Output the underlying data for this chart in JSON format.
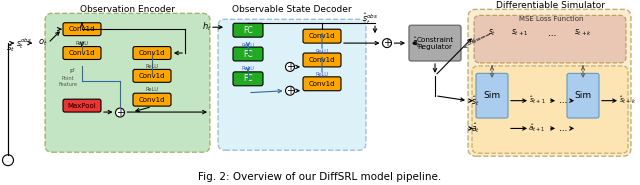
{
  "title": "Fig. 2: Overview of our DiffSRL model pipeline.",
  "obs_encoder_label": "Observation Encoder",
  "obs_state_decoder_label": "Observable State Decoder",
  "diff_sim_label": "Differentiable Simulator",
  "constraint_label": "Constraint\nRegulator",
  "mse_label": "MSE Loss Function",
  "conv1d_color": "#FFA500",
  "maxpool_color": "#EE3333",
  "fc_color": "#22AA22",
  "sim_color": "#AACCEE",
  "green_bg": "#88CC88",
  "blue_bg": "#AADDEE",
  "orange_bg": "#F5DEB3",
  "mse_bg": "#DDAA99",
  "sim_inner_bg": "#FFE090",
  "gray_bg": "#AAAAAA",
  "enc_edge": "#777700",
  "dec_edge": "#3366AA",
  "diff_edge": "#997700"
}
